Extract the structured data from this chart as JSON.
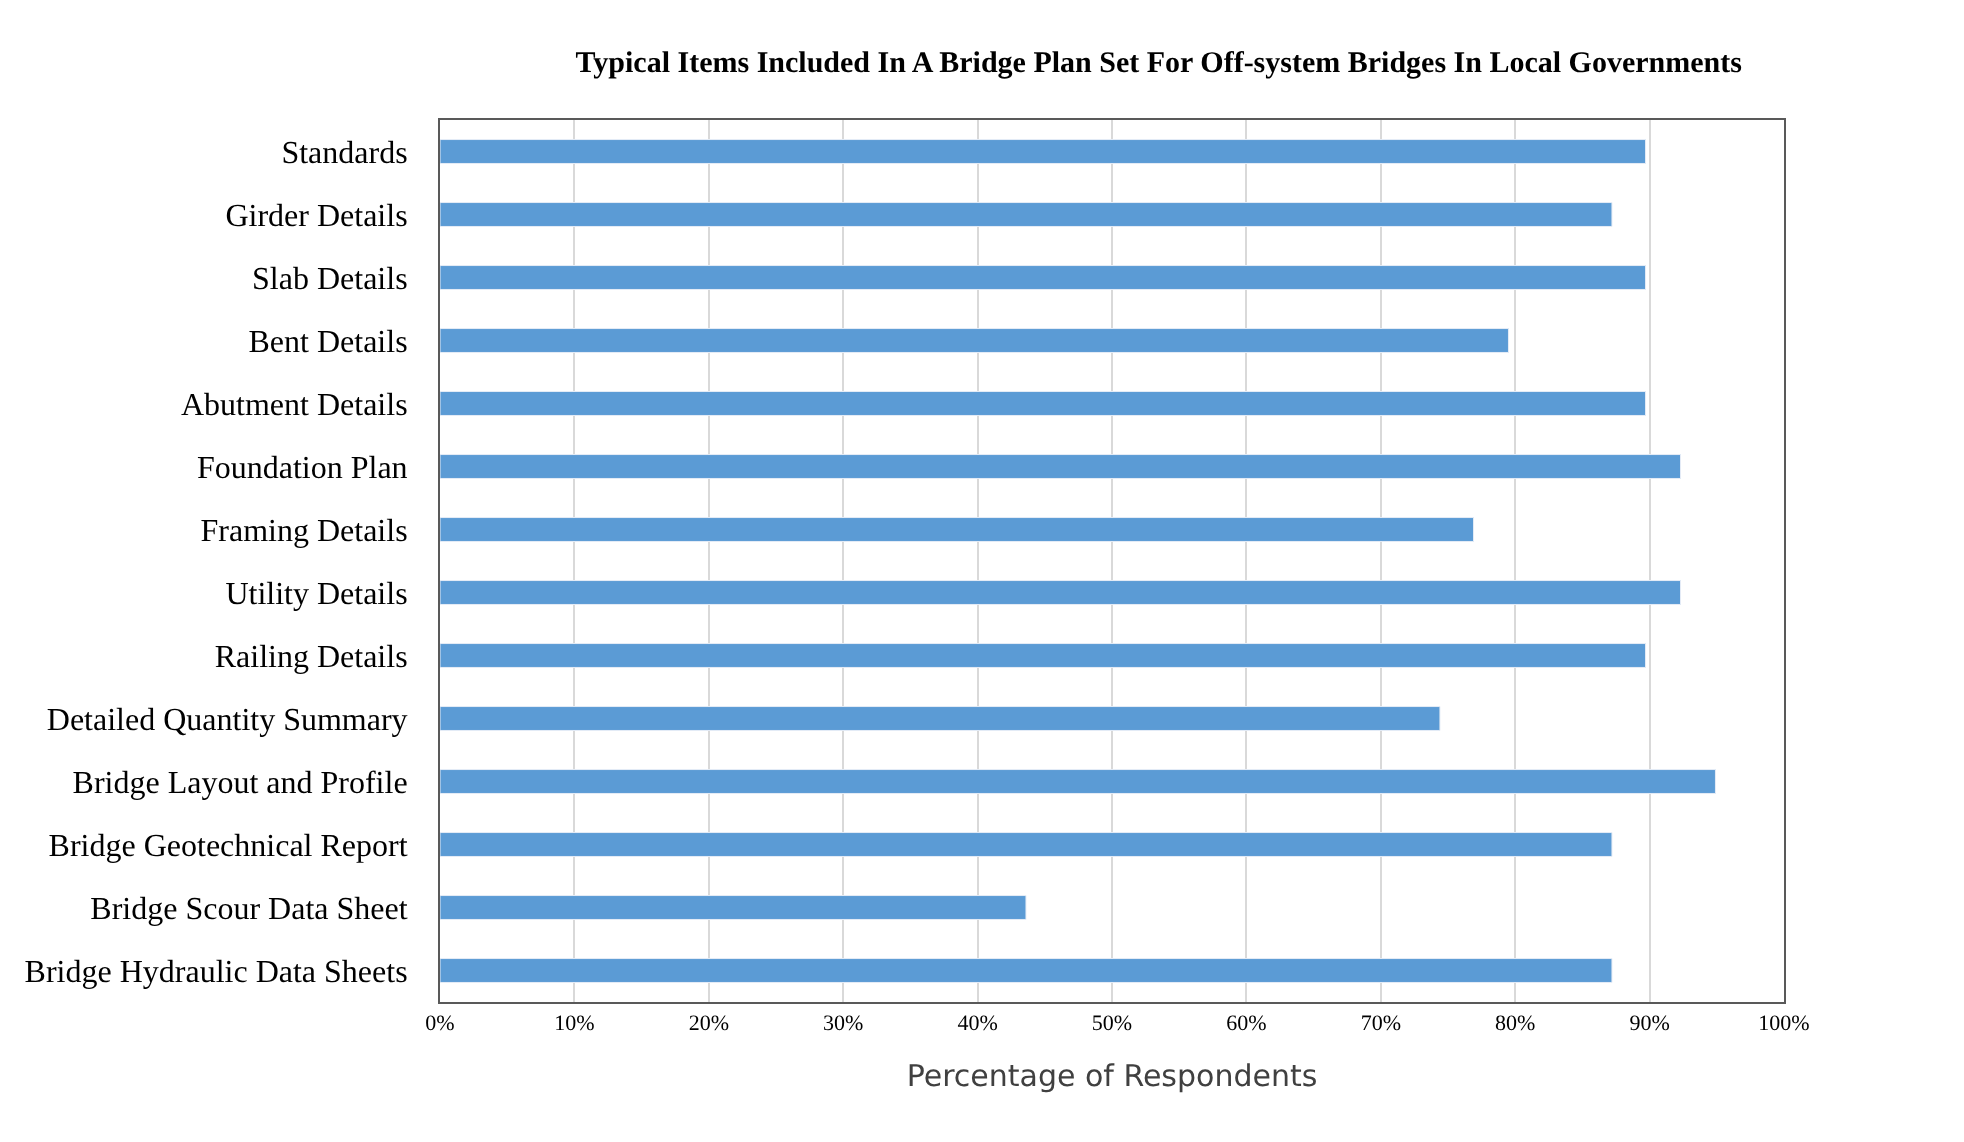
{
  "chart_data": {
    "type": "bar",
    "orientation": "horizontal",
    "title": "Typical Items Included In A Bridge Plan Set For Off-system Bridges In Local Governments",
    "xlabel": "Percentage of Respondents",
    "categories": [
      "Standards",
      "Girder Details",
      "Slab Details",
      "Bent Details",
      "Abutment Details",
      "Foundation Plan",
      "Framing Details",
      "Utility Details",
      "Railing Details",
      "Detailed Quantity Summary",
      "Bridge Layout and Profile",
      "Bridge Geotechnical Report",
      "Bridge Scour Data Sheet",
      "Bridge Hydraulic Data Sheets"
    ],
    "values": [
      89.7,
      87.2,
      89.7,
      79.5,
      89.7,
      92.3,
      76.9,
      92.3,
      89.7,
      74.4,
      94.9,
      87.2,
      43.6,
      87.2
    ],
    "color": "#5b9bd5",
    "xlim": [
      0,
      100
    ],
    "xticks": [
      {
        "value": 0,
        "label": "0%"
      },
      {
        "value": 10,
        "label": "10%"
      },
      {
        "value": 20,
        "label": "20%"
      },
      {
        "value": 30,
        "label": "30%"
      },
      {
        "value": 40,
        "label": "40%"
      },
      {
        "value": 50,
        "label": "50%"
      },
      {
        "value": 60,
        "label": "60%"
      },
      {
        "value": 70,
        "label": "70%"
      },
      {
        "value": 80,
        "label": "80%"
      },
      {
        "value": 90,
        "label": "90%"
      },
      {
        "value": 100,
        "label": "100%"
      }
    ],
    "grid": "x"
  }
}
